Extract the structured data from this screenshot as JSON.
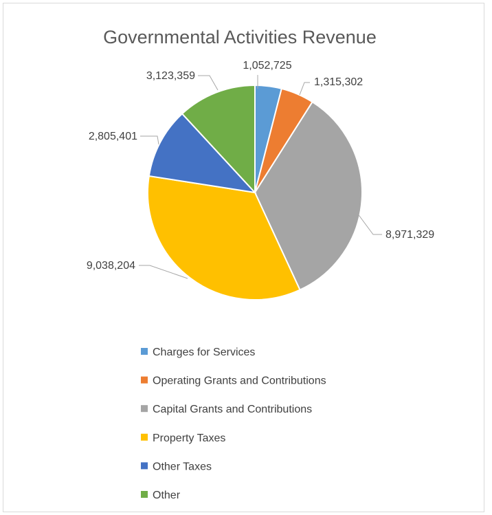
{
  "chart_data": {
    "type": "pie",
    "title": "Governmental Activities Revenue",
    "categories": [
      "Charges for Services",
      "Operating Grants and Contributions",
      "Capital Grants and Contributions",
      "Property Taxes",
      "Other Taxes",
      "Other"
    ],
    "values": [
      1052725,
      1315302,
      8971329,
      9038204,
      2805401,
      3123359
    ],
    "data_labels": [
      "1,052,725",
      "1,315,302",
      "8,971,329",
      "9,038,204",
      "2,805,401",
      "3,123,359"
    ],
    "colors": [
      "#5b9bd5",
      "#ed7d31",
      "#a5a5a5",
      "#ffc000",
      "#4472c4",
      "#70ad47"
    ],
    "legend_position": "bottom",
    "start_angle": "12 o'clock",
    "direction": "clockwise"
  }
}
